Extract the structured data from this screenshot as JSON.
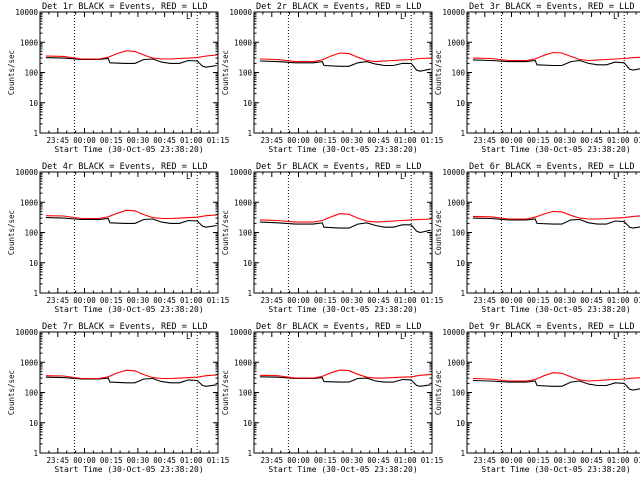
{
  "shared": {
    "ylabel": "Counts/sec",
    "xlabel": "Start Time (30-Oct-05 23:38:20)",
    "x_ticks": [
      "23:45",
      "00:00",
      "00:15",
      "00:30",
      "00:45",
      "01:00",
      "01:15"
    ],
    "y_ticks": [
      "1",
      "10",
      "100",
      "1000",
      "10000"
    ],
    "marker_glyph": "L",
    "colors": {
      "events": "#000000",
      "lld": "#ff0000"
    }
  },
  "chart_data": [
    {
      "type": "line",
      "title": "Det 1r BLACK = Events, RED = LLD",
      "xlim_min": [
        -3.33,
        96.67
      ],
      "ylim": [
        1,
        10000
      ],
      "yscale": "log",
      "x_tick_minutes": [
        6.67,
        21.67,
        36.67,
        51.67,
        66.67,
        81.67,
        96.67
      ],
      "vlines_min": [
        16.0,
        85.0
      ],
      "series": [
        {
          "name": "Events",
          "x": [
            0,
            10,
            20,
            30,
            35,
            36,
            45,
            50,
            55,
            60,
            65,
            70,
            75,
            80,
            85,
            88,
            90,
            96
          ],
          "y": [
            310,
            300,
            270,
            270,
            290,
            210,
            200,
            200,
            270,
            280,
            220,
            200,
            200,
            250,
            240,
            160,
            150,
            170
          ]
        },
        {
          "name": "LLD",
          "x": [
            0,
            10,
            20,
            30,
            35,
            40,
            45,
            50,
            55,
            60,
            65,
            70,
            75,
            80,
            85,
            90,
            96
          ],
          "y": [
            350,
            340,
            280,
            280,
            320,
            420,
            520,
            500,
            380,
            300,
            280,
            280,
            290,
            300,
            310,
            350,
            380
          ]
        }
      ]
    },
    {
      "type": "line",
      "title": "Det 2r BLACK = Events, RED = LLD",
      "xlim_min": [
        -3.33,
        96.67
      ],
      "ylim": [
        1,
        10000
      ],
      "yscale": "log",
      "x_tick_minutes": [
        6.67,
        21.67,
        36.67,
        51.67,
        66.67,
        81.67,
        96.67
      ],
      "vlines_min": [
        16.0,
        85.0
      ],
      "series": [
        {
          "name": "Events",
          "x": [
            0,
            10,
            20,
            30,
            35,
            36,
            45,
            50,
            55,
            60,
            65,
            70,
            75,
            80,
            85,
            88,
            90,
            96
          ],
          "y": [
            240,
            230,
            210,
            210,
            230,
            170,
            160,
            160,
            210,
            230,
            190,
            170,
            170,
            200,
            200,
            120,
            110,
            130
          ]
        },
        {
          "name": "LLD",
          "x": [
            0,
            10,
            20,
            30,
            35,
            40,
            45,
            50,
            55,
            60,
            65,
            70,
            75,
            80,
            85,
            90,
            96
          ],
          "y": [
            280,
            270,
            230,
            230,
            260,
            350,
            440,
            420,
            320,
            250,
            230,
            240,
            250,
            260,
            270,
            290,
            300
          ]
        }
      ]
    },
    {
      "type": "line",
      "title": "Det 3r BLACK = Events, RED = LLD",
      "xlim_min": [
        -3.33,
        96.67
      ],
      "ylim": [
        1,
        10000
      ],
      "yscale": "log",
      "x_tick_minutes": [
        6.67,
        21.67,
        36.67,
        51.67,
        66.67,
        81.67,
        96.67
      ],
      "vlines_min": [
        16.0,
        85.0
      ],
      "series": [
        {
          "name": "Events",
          "x": [
            0,
            10,
            20,
            30,
            35,
            36,
            45,
            50,
            55,
            60,
            65,
            70,
            75,
            80,
            85,
            88,
            90,
            96
          ],
          "y": [
            260,
            250,
            230,
            230,
            250,
            180,
            170,
            170,
            230,
            250,
            200,
            180,
            180,
            220,
            210,
            130,
            120,
            140
          ]
        },
        {
          "name": "LLD",
          "x": [
            0,
            10,
            20,
            30,
            35,
            40,
            45,
            50,
            55,
            60,
            65,
            70,
            75,
            80,
            85,
            90,
            96
          ],
          "y": [
            300,
            290,
            250,
            250,
            280,
            370,
            460,
            440,
            340,
            270,
            250,
            260,
            270,
            280,
            290,
            310,
            320
          ]
        }
      ]
    },
    {
      "type": "line",
      "title": "Det 4r BLACK = Events, RED = LLD",
      "xlim_min": [
        -3.33,
        96.67
      ],
      "ylim": [
        1,
        10000
      ],
      "yscale": "log",
      "x_tick_minutes": [
        6.67,
        21.67,
        36.67,
        51.67,
        66.67,
        81.67,
        96.67
      ],
      "vlines_min": [
        16.0,
        85.0
      ],
      "series": [
        {
          "name": "Events",
          "x": [
            0,
            10,
            20,
            30,
            35,
            36,
            45,
            50,
            55,
            60,
            65,
            70,
            75,
            80,
            85,
            88,
            90,
            96
          ],
          "y": [
            310,
            300,
            270,
            270,
            290,
            210,
            200,
            200,
            270,
            280,
            220,
            200,
            200,
            250,
            240,
            160,
            150,
            170
          ]
        },
        {
          "name": "LLD",
          "x": [
            0,
            10,
            20,
            30,
            35,
            40,
            45,
            50,
            55,
            60,
            65,
            70,
            75,
            80,
            85,
            90,
            96
          ],
          "y": [
            360,
            350,
            290,
            290,
            330,
            430,
            540,
            520,
            390,
            310,
            290,
            290,
            300,
            310,
            320,
            360,
            380
          ]
        }
      ]
    },
    {
      "type": "line",
      "title": "Det 5r BLACK = Events, RED = LLD",
      "xlim_min": [
        -3.33,
        96.67
      ],
      "ylim": [
        1,
        10000
      ],
      "yscale": "log",
      "x_tick_minutes": [
        6.67,
        21.67,
        36.67,
        51.67,
        66.67,
        81.67,
        96.67
      ],
      "vlines_min": [
        16.0,
        85.0
      ],
      "series": [
        {
          "name": "Events",
          "x": [
            0,
            10,
            20,
            30,
            35,
            36,
            45,
            50,
            55,
            60,
            65,
            70,
            75,
            80,
            85,
            88,
            90,
            96
          ],
          "y": [
            220,
            210,
            190,
            190,
            210,
            150,
            140,
            140,
            190,
            210,
            170,
            150,
            150,
            180,
            180,
            110,
            100,
            120
          ]
        },
        {
          "name": "LLD",
          "x": [
            0,
            10,
            20,
            30,
            35,
            40,
            45,
            50,
            55,
            60,
            65,
            70,
            75,
            80,
            85,
            90,
            96
          ],
          "y": [
            260,
            250,
            220,
            220,
            250,
            330,
            420,
            400,
            300,
            240,
            220,
            230,
            240,
            250,
            260,
            270,
            280
          ]
        }
      ]
    },
    {
      "type": "line",
      "title": "Det 6r BLACK = Events, RED = LLD",
      "xlim_min": [
        -3.33,
        96.67
      ],
      "ylim": [
        1,
        10000
      ],
      "yscale": "log",
      "x_tick_minutes": [
        6.67,
        21.67,
        36.67,
        51.67,
        66.67,
        81.67,
        96.67
      ],
      "vlines_min": [
        16.0,
        85.0
      ],
      "series": [
        {
          "name": "Events",
          "x": [
            0,
            10,
            20,
            30,
            35,
            36,
            45,
            50,
            55,
            60,
            65,
            70,
            75,
            80,
            85,
            88,
            90,
            96
          ],
          "y": [
            300,
            290,
            260,
            260,
            280,
            200,
            190,
            190,
            260,
            270,
            210,
            190,
            190,
            240,
            230,
            150,
            140,
            160
          ]
        },
        {
          "name": "LLD",
          "x": [
            0,
            10,
            20,
            30,
            35,
            40,
            45,
            50,
            55,
            60,
            65,
            70,
            75,
            80,
            85,
            90,
            96
          ],
          "y": [
            340,
            330,
            280,
            280,
            320,
            410,
            500,
            480,
            370,
            300,
            280,
            280,
            290,
            300,
            310,
            340,
            360
          ]
        }
      ]
    },
    {
      "type": "line",
      "title": "Det 7r BLACK = Events, RED = LLD",
      "xlim_min": [
        -3.33,
        96.67
      ],
      "ylim": [
        1,
        10000
      ],
      "yscale": "log",
      "x_tick_minutes": [
        6.67,
        21.67,
        36.67,
        51.67,
        66.67,
        81.67,
        96.67
      ],
      "vlines_min": [
        16.0,
        85.0
      ],
      "series": [
        {
          "name": "Events",
          "x": [
            0,
            10,
            20,
            30,
            35,
            36,
            45,
            50,
            55,
            60,
            65,
            70,
            75,
            80,
            85,
            88,
            90,
            96
          ],
          "y": [
            320,
            310,
            280,
            280,
            300,
            220,
            210,
            210,
            280,
            290,
            230,
            210,
            210,
            260,
            250,
            170,
            160,
            180
          ]
        },
        {
          "name": "LLD",
          "x": [
            0,
            10,
            20,
            30,
            35,
            40,
            45,
            50,
            55,
            60,
            65,
            70,
            75,
            80,
            85,
            90,
            96
          ],
          "y": [
            360,
            350,
            290,
            290,
            330,
            440,
            540,
            520,
            390,
            310,
            290,
            290,
            300,
            310,
            320,
            360,
            380
          ]
        }
      ]
    },
    {
      "type": "line",
      "title": "Det 8r BLACK = Events, RED = LLD",
      "xlim_min": [
        -3.33,
        96.67
      ],
      "ylim": [
        1,
        10000
      ],
      "yscale": "log",
      "x_tick_minutes": [
        6.67,
        21.67,
        36.67,
        51.67,
        66.67,
        81.67,
        96.67
      ],
      "vlines_min": [
        16.0,
        85.0
      ],
      "series": [
        {
          "name": "Events",
          "x": [
            0,
            10,
            20,
            30,
            35,
            36,
            45,
            50,
            55,
            60,
            65,
            70,
            75,
            80,
            85,
            88,
            90,
            96
          ],
          "y": [
            330,
            320,
            290,
            290,
            310,
            230,
            220,
            220,
            290,
            300,
            240,
            220,
            220,
            270,
            260,
            170,
            160,
            180
          ]
        },
        {
          "name": "LLD",
          "x": [
            0,
            10,
            20,
            30,
            35,
            40,
            45,
            50,
            55,
            60,
            65,
            70,
            75,
            80,
            85,
            90,
            96
          ],
          "y": [
            370,
            360,
            300,
            300,
            340,
            450,
            550,
            530,
            400,
            320,
            300,
            300,
            310,
            320,
            330,
            370,
            390
          ]
        }
      ]
    },
    {
      "type": "line",
      "title": "Det 9r BLACK = Events, RED = LLD",
      "xlim_min": [
        -3.33,
        96.67
      ],
      "ylim": [
        1,
        10000
      ],
      "yscale": "log",
      "x_tick_minutes": [
        6.67,
        21.67,
        36.67,
        51.67,
        66.67,
        81.67,
        96.67
      ],
      "vlines_min": [
        16.0,
        85.0
      ],
      "series": [
        {
          "name": "Events",
          "x": [
            0,
            10,
            20,
            30,
            35,
            36,
            45,
            50,
            55,
            60,
            65,
            70,
            75,
            80,
            85,
            88,
            90,
            96
          ],
          "y": [
            250,
            240,
            220,
            220,
            240,
            170,
            160,
            160,
            220,
            240,
            190,
            170,
            170,
            210,
            200,
            130,
            120,
            140
          ]
        },
        {
          "name": "LLD",
          "x": [
            0,
            10,
            20,
            30,
            35,
            40,
            45,
            50,
            55,
            60,
            65,
            70,
            75,
            80,
            85,
            90,
            96
          ],
          "y": [
            290,
            280,
            240,
            240,
            270,
            360,
            450,
            430,
            330,
            260,
            240,
            250,
            260,
            270,
            280,
            300,
            310
          ]
        }
      ]
    }
  ]
}
